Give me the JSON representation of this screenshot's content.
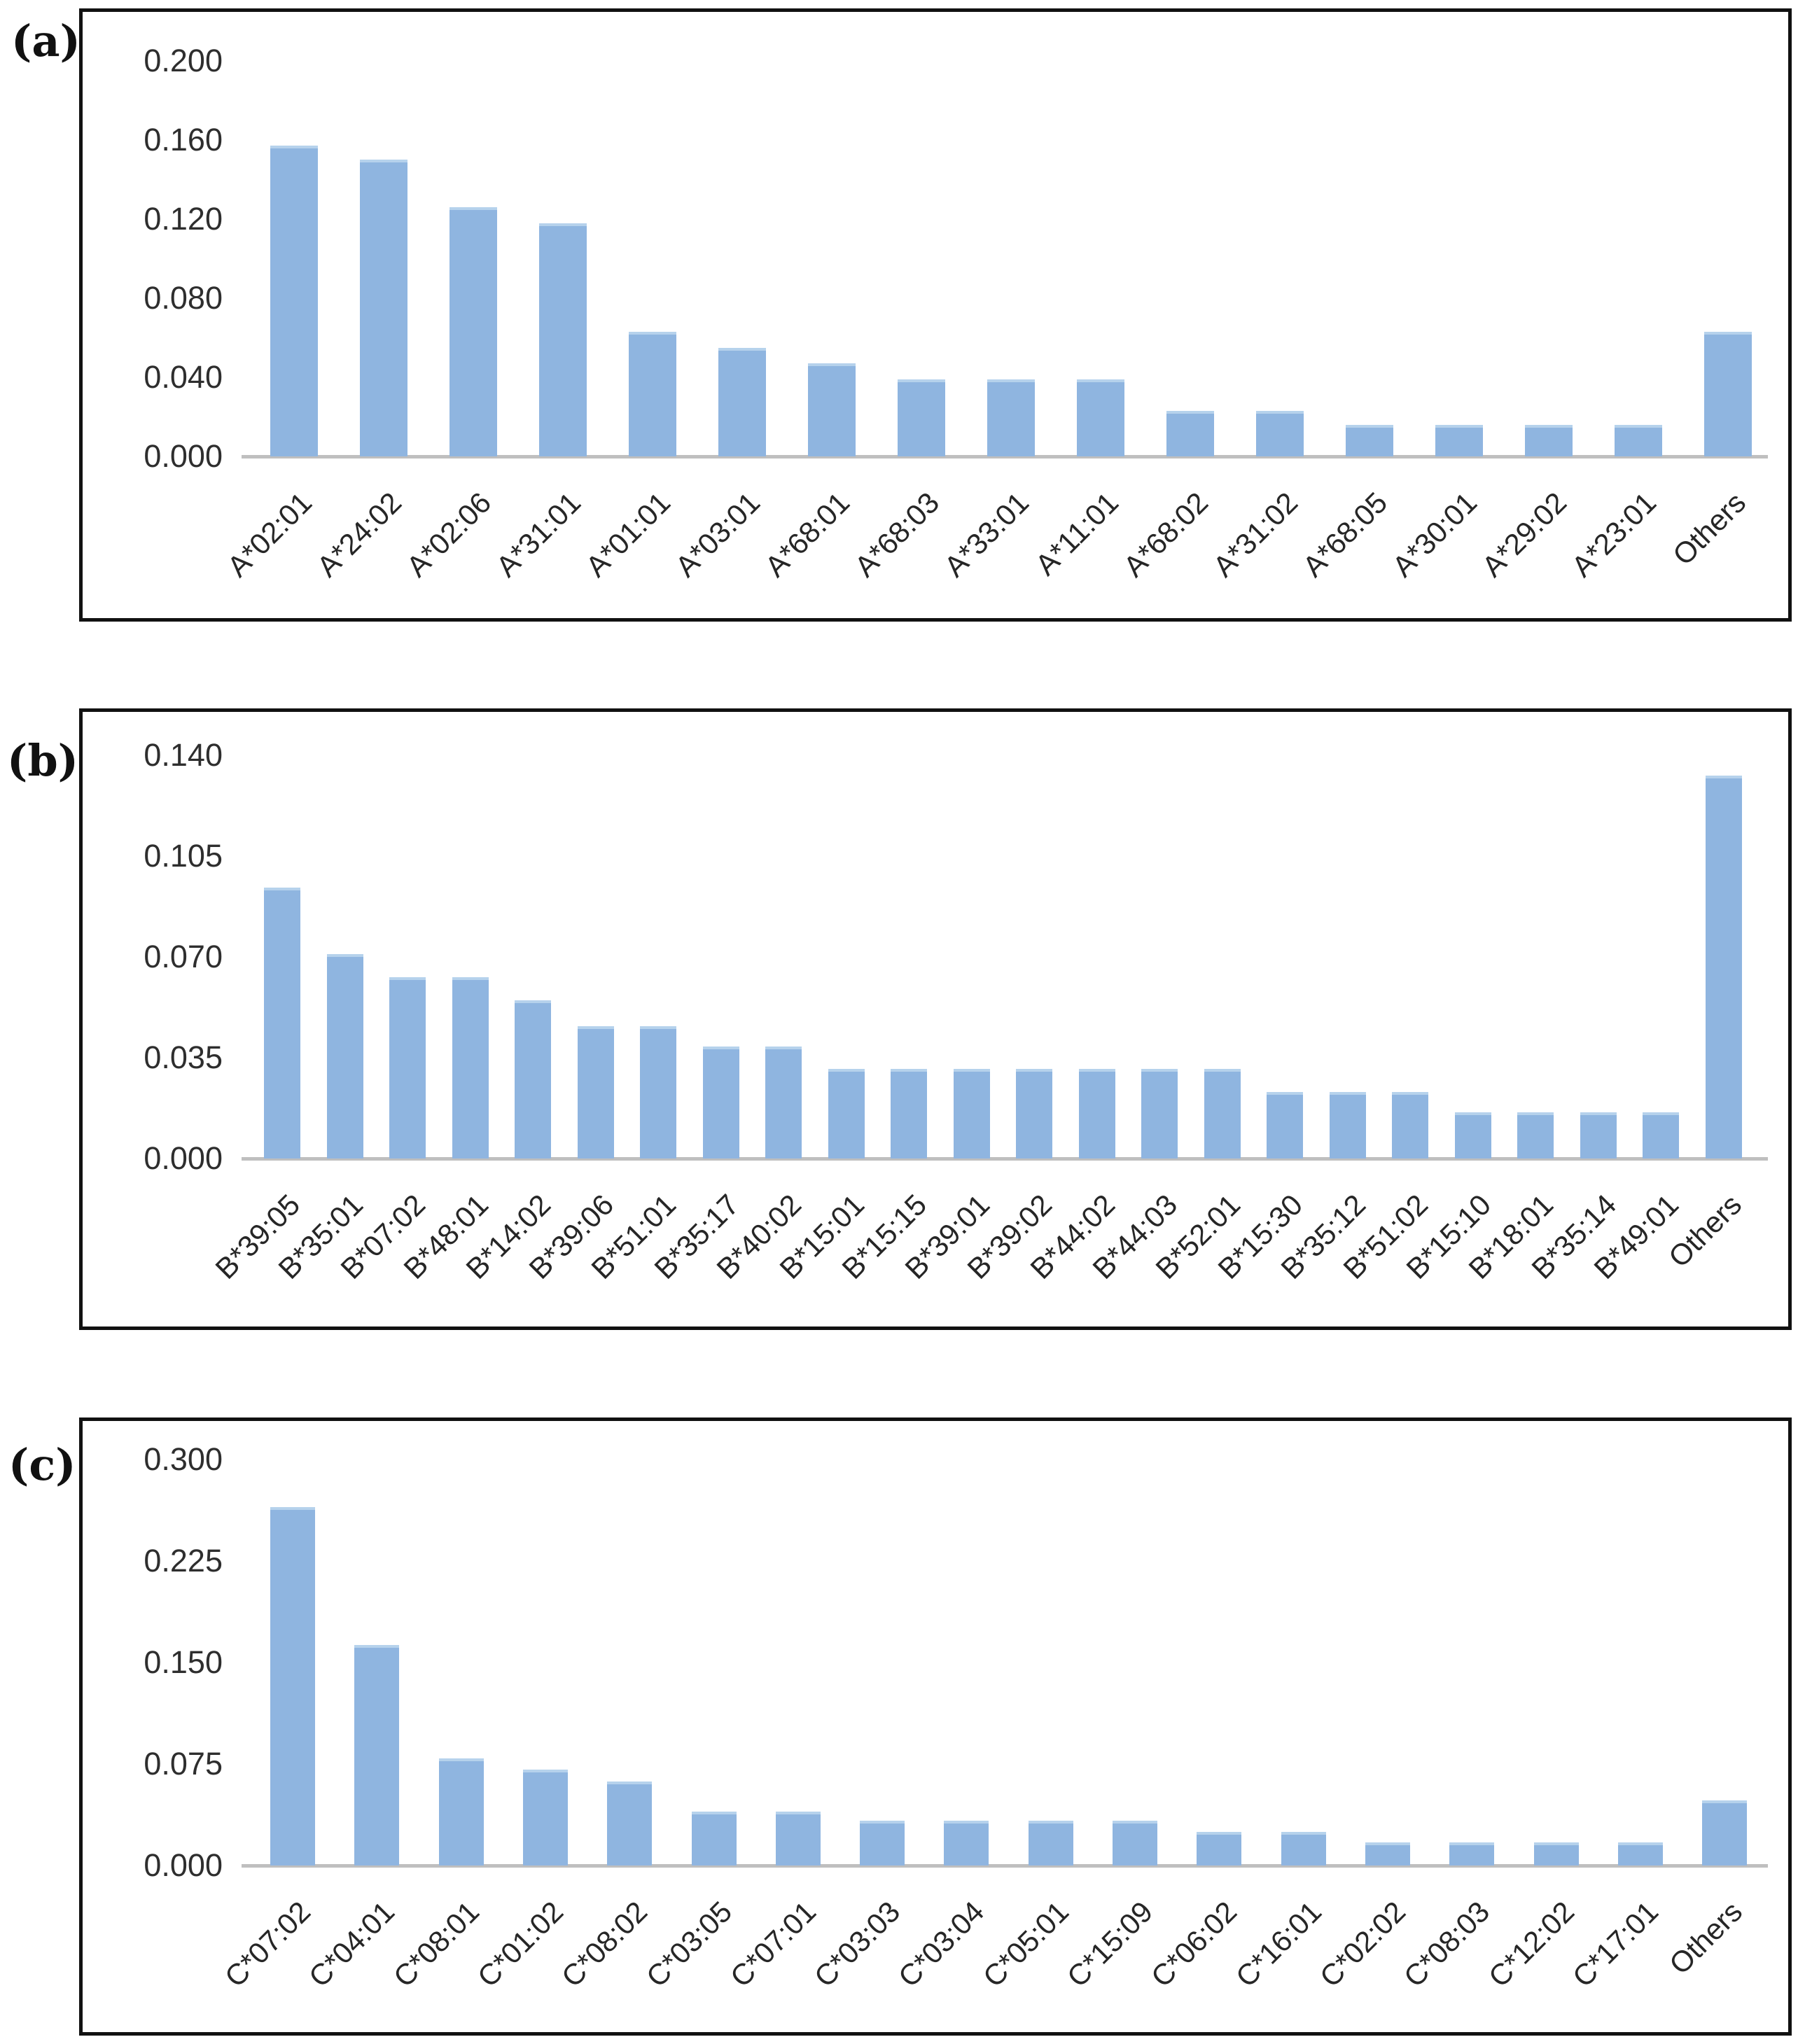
{
  "figure": {
    "panel_labels": [
      "(a)",
      "(b)",
      "(c)"
    ]
  },
  "colors": {
    "bar_fill": "#8FB5E0",
    "bar_top_edge": "#B6D2EC",
    "baseline_gray": "#BFBFBF",
    "tick_text": "#2E2E2E",
    "frame_border": "#111111"
  },
  "chart_data": [
    {
      "type": "bar",
      "panel_label": "(a)",
      "title": "",
      "xlabel": "",
      "ylabel": "",
      "grid": false,
      "legend": null,
      "ylim": [
        0.0,
        0.2
      ],
      "y_ticks": [
        "0.200",
        "0.160",
        "0.120",
        "0.080",
        "0.040",
        "0.000"
      ],
      "categories": [
        "A*02:01",
        "A*24:02",
        "A*02:06",
        "A*31:01",
        "A*01:01",
        "A*03:01",
        "A*68:01",
        "A*68:03",
        "A*33:01",
        "A*11:01",
        "A*68:02",
        "A*31:02",
        "A*68:05",
        "A*30:01",
        "A*29:02",
        "A*23:01",
        "Others"
      ],
      "values": [
        0.157,
        0.15,
        0.126,
        0.118,
        0.063,
        0.055,
        0.047,
        0.039,
        0.039,
        0.039,
        0.023,
        0.023,
        0.016,
        0.016,
        0.016,
        0.016,
        0.063
      ]
    },
    {
      "type": "bar",
      "panel_label": "(b)",
      "title": "",
      "xlabel": "",
      "ylabel": "",
      "grid": false,
      "legend": null,
      "ylim": [
        0.0,
        0.14
      ],
      "y_ticks": [
        "0.140",
        "0.105",
        "0.070",
        "0.035",
        "0.000"
      ],
      "categories": [
        "B*39:05",
        "B*35:01",
        "B*07:02",
        "B*48:01",
        "B*14:02",
        "B*39:06",
        "B*51:01",
        "B*35:17",
        "B*40:02",
        "B*15:01",
        "B*15:15",
        "B*39:01",
        "B*39:02",
        "B*44:02",
        "B*44:03",
        "B*52:01",
        "B*15:30",
        "B*35:12",
        "B*51:02",
        "B*15:10",
        "B*18:01",
        "B*35:14",
        "B*49:01",
        "Others"
      ],
      "values": [
        0.094,
        0.071,
        0.063,
        0.063,
        0.055,
        0.046,
        0.046,
        0.039,
        0.039,
        0.031,
        0.031,
        0.031,
        0.031,
        0.031,
        0.031,
        0.031,
        0.023,
        0.023,
        0.023,
        0.016,
        0.016,
        0.016,
        0.016,
        0.133
      ]
    },
    {
      "type": "bar",
      "panel_label": "(c)",
      "title": "",
      "xlabel": "",
      "ylabel": "",
      "grid": false,
      "legend": null,
      "ylim": [
        0.0,
        0.3
      ],
      "y_ticks": [
        "0.300",
        "0.225",
        "0.150",
        "0.075",
        "0.000"
      ],
      "categories": [
        "C*07:02",
        "C*04:01",
        "C*08:01",
        "C*01:02",
        "C*08:02",
        "C*03:05",
        "C*07:01",
        "C*03:03",
        "C*03:04",
        "C*05:01",
        "C*15:09",
        "C*06:02",
        "C*16:01",
        "C*02:02",
        "C*08:03",
        "C*12:02",
        "C*17:01",
        "Others"
      ],
      "values": [
        0.265,
        0.163,
        0.079,
        0.071,
        0.062,
        0.04,
        0.04,
        0.033,
        0.033,
        0.033,
        0.033,
        0.025,
        0.025,
        0.017,
        0.017,
        0.017,
        0.017,
        0.048
      ]
    }
  ]
}
